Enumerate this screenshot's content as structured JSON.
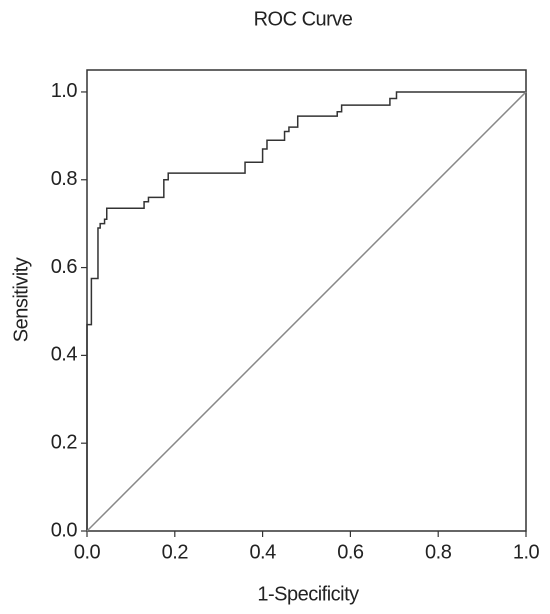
{
  "chart_data": {
    "type": "line",
    "title": "ROC Curve",
    "x_label": "1-Specificity",
    "y_label": "Sensitivity",
    "xlim": [
      0,
      1
    ],
    "ylim": [
      0,
      1.05
    ],
    "xticks": [
      {
        "value": 0,
        "label": "0.0"
      },
      {
        "value": 0.2,
        "label": "0.2"
      },
      {
        "value": 0.4,
        "label": "0.4"
      },
      {
        "value": 0.6,
        "label": "0.6"
      },
      {
        "value": 0.8,
        "label": "0.8"
      },
      {
        "value": 1,
        "label": "1.0"
      }
    ],
    "yticks": [
      {
        "value": 0,
        "label": "0.0"
      },
      {
        "value": 0.2,
        "label": "0.2"
      },
      {
        "value": 0.4,
        "label": "0.4"
      },
      {
        "value": 0.6,
        "label": "0.6"
      },
      {
        "value": 0.8,
        "label": "0.8"
      },
      {
        "value": 1,
        "label": "1.0"
      }
    ],
    "grid": false,
    "series": [
      {
        "color": "#333333",
        "x": [
          0,
          0,
          0.01,
          0.01,
          0.025,
          0.025,
          0.03,
          0.03,
          0.04,
          0.04,
          0.045,
          0.045,
          0.13,
          0.13,
          0.14,
          0.14,
          0.175,
          0.175,
          0.185,
          0.185,
          0.36,
          0.36,
          0.4,
          0.4,
          0.41,
          0.41,
          0.45,
          0.45,
          0.46,
          0.46,
          0.48,
          0.48,
          0.57,
          0.57,
          0.58,
          0.58,
          0.69,
          0.69,
          0.705,
          0.705,
          1
        ],
        "values": [
          0,
          0.47,
          0.47,
          0.575,
          0.575,
          0.69,
          0.69,
          0.7,
          0.7,
          0.71,
          0.71,
          0.735,
          0.735,
          0.75,
          0.75,
          0.76,
          0.76,
          0.8,
          0.8,
          0.815,
          0.815,
          0.84,
          0.84,
          0.87,
          0.87,
          0.89,
          0.89,
          0.91,
          0.91,
          0.92,
          0.92,
          0.945,
          0.945,
          0.955,
          0.955,
          0.97,
          0.97,
          0.985,
          0.985,
          1,
          1
        ]
      },
      {
        "color": "#888888",
        "x": [
          0,
          1
        ],
        "values": [
          0,
          1
        ]
      }
    ]
  }
}
